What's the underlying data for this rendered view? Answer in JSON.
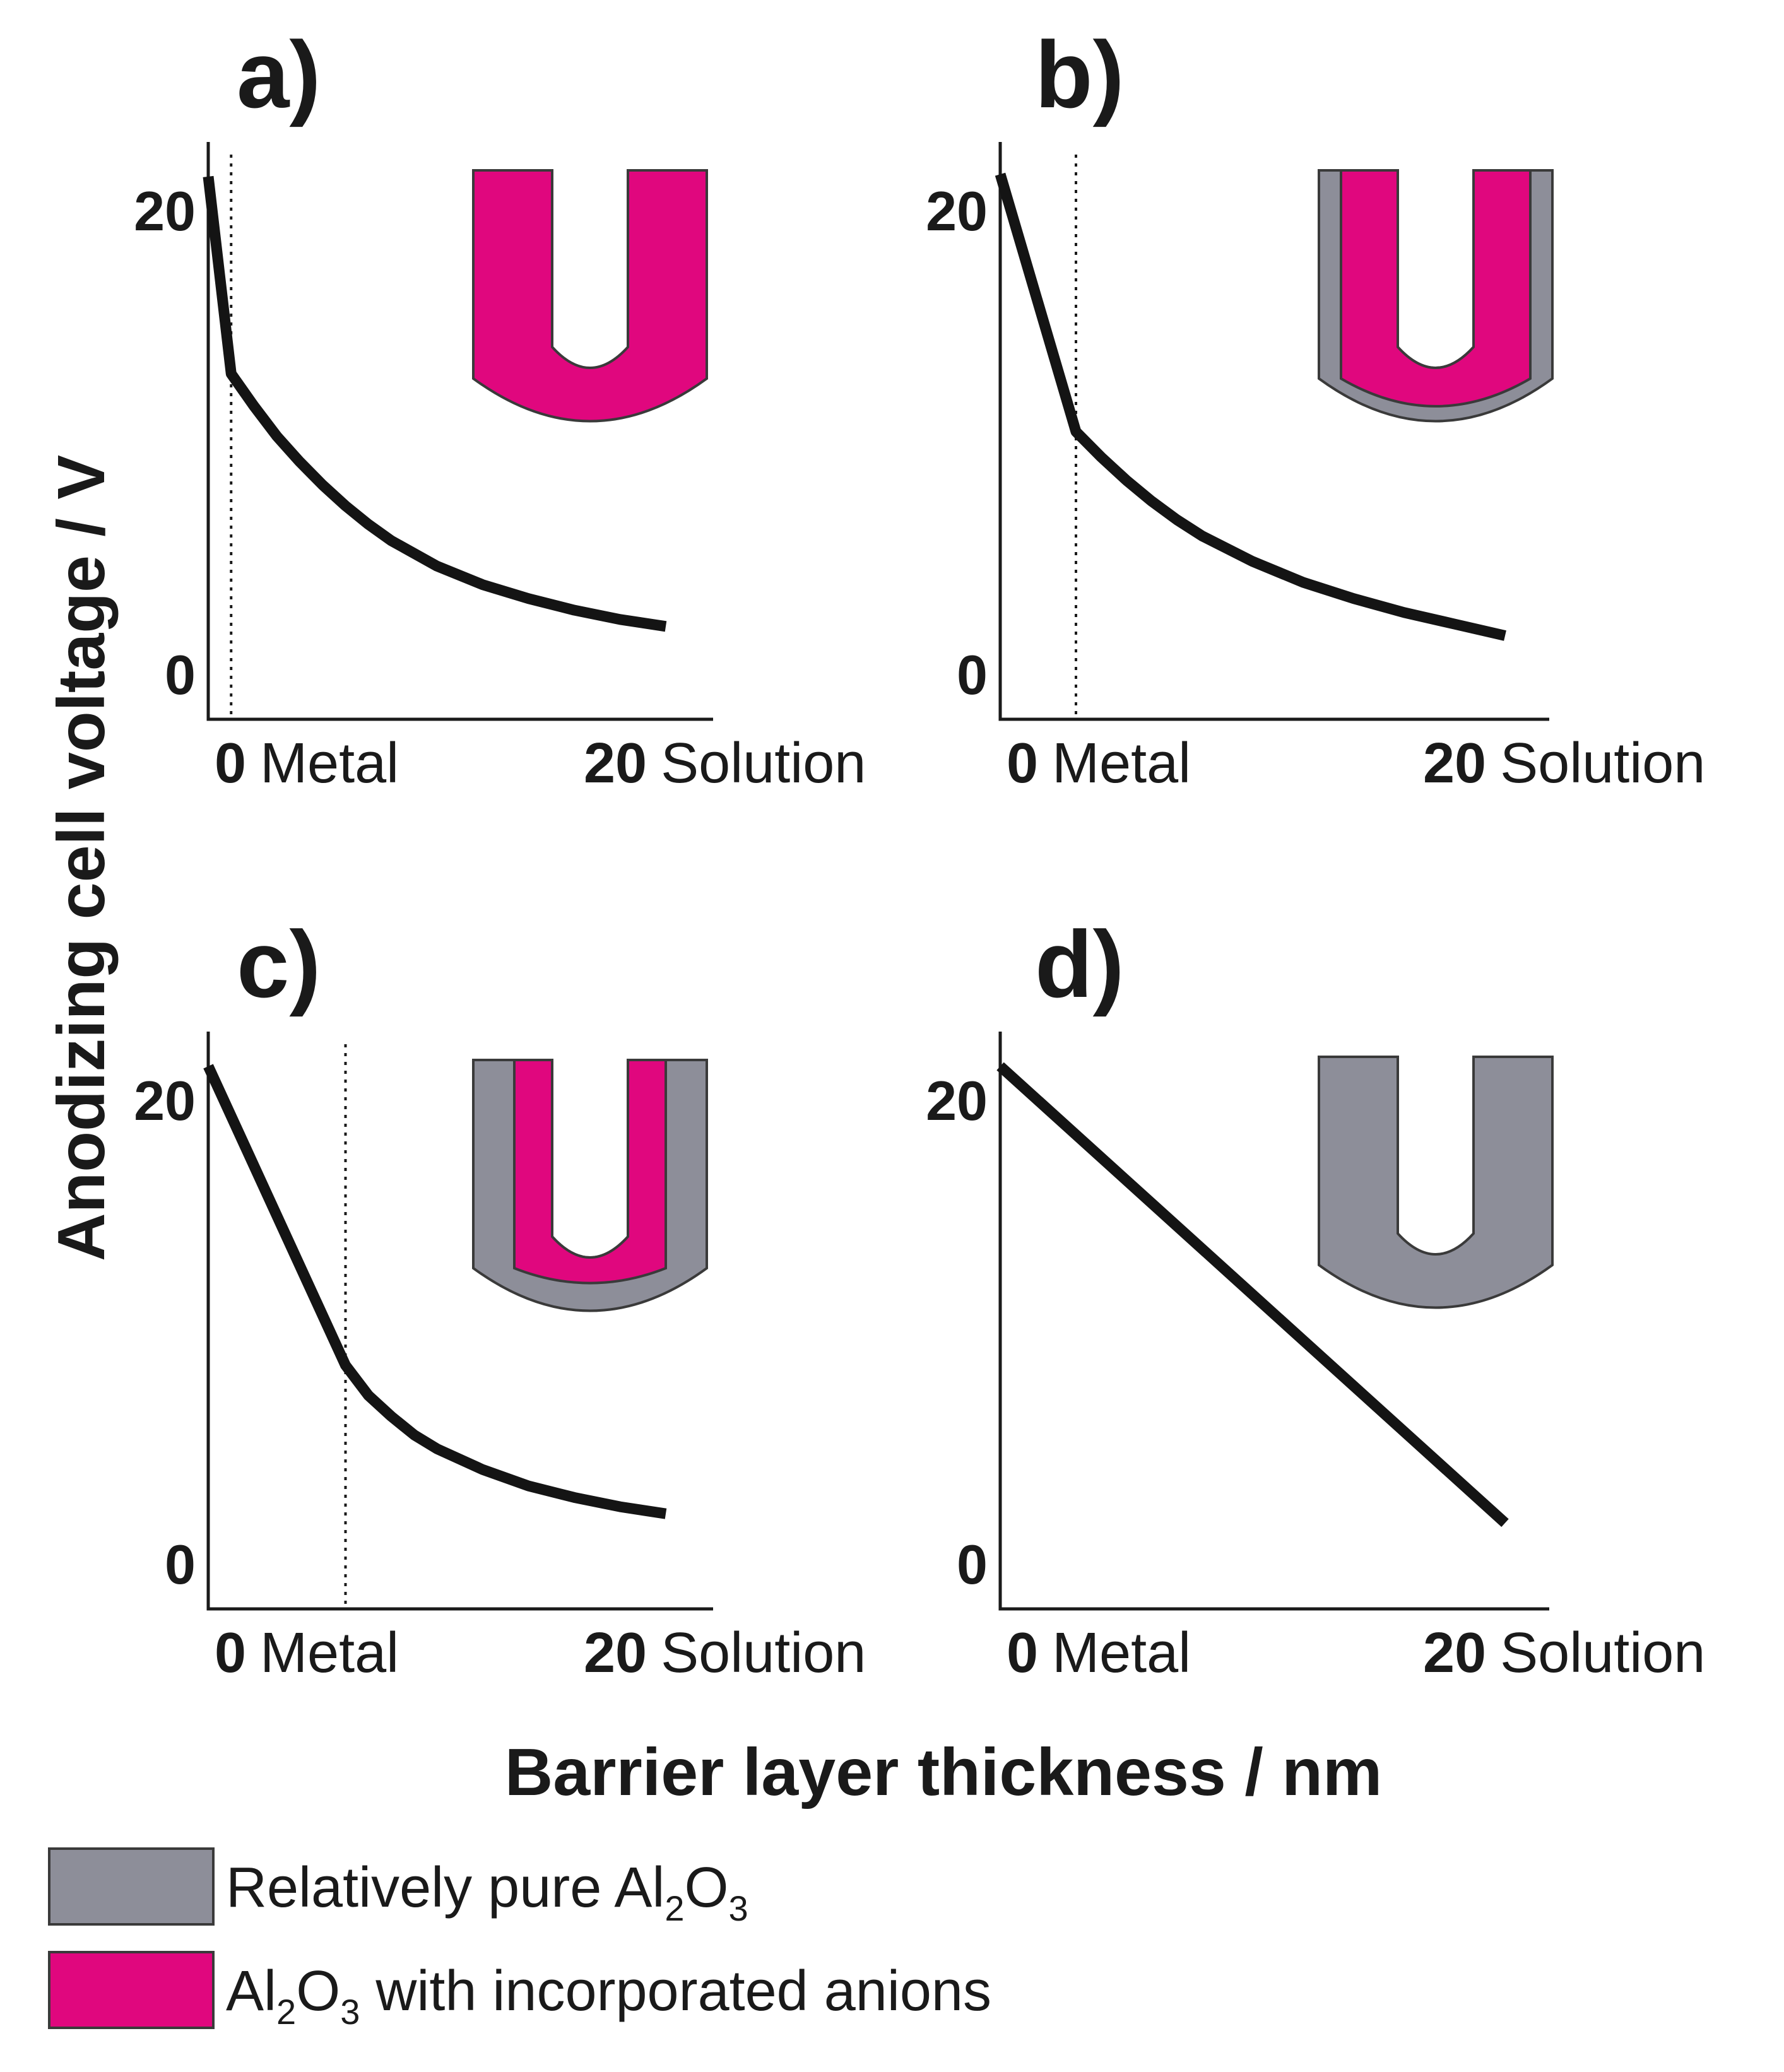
{
  "colors": {
    "pure_oxide": "#8d8e99",
    "anion_oxide": "#e0077e",
    "line": "#141414"
  },
  "chart_data": [
    {
      "type": "line",
      "panel": "a)",
      "xlabel_left": {
        "num": "0",
        "word": "Metal"
      },
      "xlabel_right": {
        "num": "20",
        "word": "Solution"
      },
      "yticks": [
        "20",
        "0"
      ],
      "xlim": [
        0,
        20
      ],
      "ylim": [
        0,
        20
      ],
      "interface_x": 1,
      "x": [
        0,
        1,
        2,
        3,
        4,
        5,
        6,
        7,
        8,
        10,
        12,
        14,
        16,
        18,
        20
      ],
      "y": [
        21.5,
        13,
        11.6,
        10.3,
        9.2,
        8.2,
        7.3,
        6.5,
        5.8,
        4.7,
        3.9,
        3.3,
        2.8,
        2.4,
        2.1
      ],
      "inset": {
        "outer": "anion",
        "middle": "anion",
        "inner": "anion"
      }
    },
    {
      "type": "line",
      "panel": "b)",
      "xlabel_left": {
        "num": "0",
        "word": "Metal"
      },
      "xlabel_right": {
        "num": "20",
        "word": "Solution"
      },
      "yticks": [
        "20",
        "0"
      ],
      "xlim": [
        0,
        20
      ],
      "ylim": [
        0,
        20
      ],
      "interface_x": 3,
      "x": [
        0,
        3,
        4,
        5,
        6,
        7,
        8,
        10,
        12,
        14,
        16,
        18,
        20
      ],
      "y": [
        21.6,
        10.5,
        9.4,
        8.4,
        7.5,
        6.7,
        6.0,
        4.9,
        4.0,
        3.3,
        2.7,
        2.2,
        1.7
      ],
      "inset": {
        "outer": "pure",
        "middle": "anion",
        "inner": "anion"
      }
    },
    {
      "type": "line",
      "panel": "c)",
      "xlabel_left": {
        "num": "0",
        "word": "Metal"
      },
      "xlabel_right": {
        "num": "20",
        "word": "Solution"
      },
      "yticks": [
        "20",
        "0"
      ],
      "xlim": [
        0,
        20
      ],
      "ylim": [
        0,
        20
      ],
      "interface_x": 6,
      "x": [
        0,
        6,
        7,
        8,
        9,
        10,
        12,
        14,
        16,
        18,
        20
      ],
      "y": [
        21.5,
        8.6,
        7.3,
        6.4,
        5.6,
        5.0,
        4.1,
        3.4,
        2.9,
        2.5,
        2.2
      ],
      "inset": {
        "outer": "pure",
        "middle": "pure",
        "inner": "anion"
      }
    },
    {
      "type": "line",
      "panel": "d)",
      "xlabel_left": {
        "num": "0",
        "word": "Metal"
      },
      "xlabel_right": {
        "num": "20",
        "word": "Solution"
      },
      "yticks": [
        "20",
        "0"
      ],
      "xlim": [
        0,
        20
      ],
      "ylim": [
        0,
        20
      ],
      "interface_x": null,
      "x": [
        0,
        20
      ],
      "y": [
        21.5,
        1.8
      ],
      "inset": {
        "outer": "pure",
        "middle": "pure",
        "inner": "pure"
      }
    }
  ],
  "y_axis_title": "Anodizing cell voltage / V",
  "x_axis_title": "Barrier layer thickness / nm",
  "legend": [
    {
      "key": "pure",
      "text": "Relatively pure Al",
      "sub1": "2",
      "mid": "O",
      "sub2": "3",
      "tail": ""
    },
    {
      "key": "anion",
      "text": "Al",
      "sub1": "2",
      "mid": "O",
      "sub2": "3",
      "tail": " with incorporated anions"
    }
  ]
}
